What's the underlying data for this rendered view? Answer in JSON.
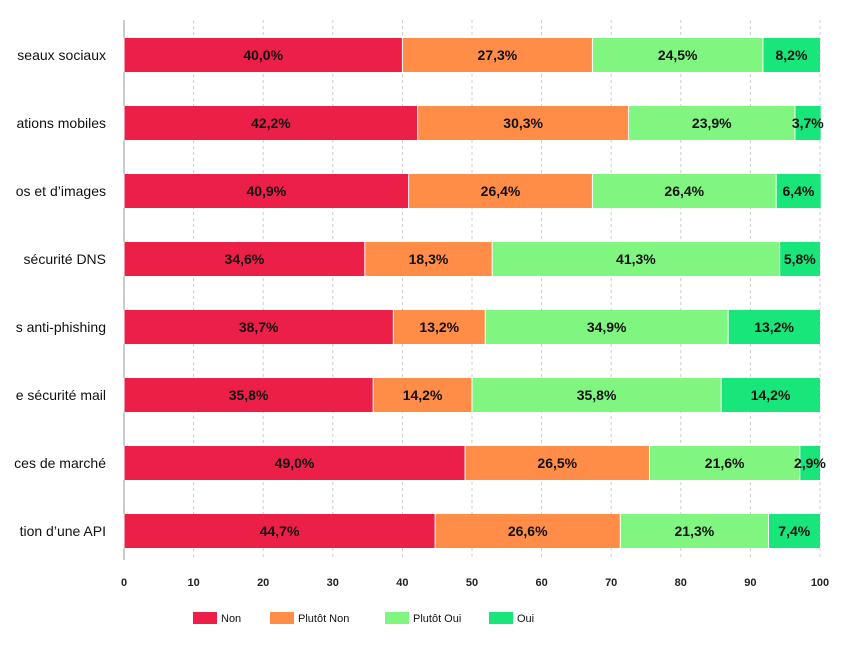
{
  "chart_data": {
    "type": "bar",
    "orientation": "horizontal",
    "stacked": true,
    "title": "",
    "xlabel": "",
    "ylabel": "",
    "xlim": [
      0,
      100
    ],
    "ticks": [
      "0",
      "10",
      "20",
      "30",
      "40",
      "50",
      "60",
      "70",
      "80",
      "90",
      "100"
    ],
    "grid": true,
    "legend_position": "bottom",
    "categories": [
      "seaux sociaux",
      "ations mobiles",
      "os et d’images",
      "sécurité DNS",
      "s anti-phishing",
      "e sécurité mail",
      "ces de marché",
      "tion d’une API"
    ],
    "series": [
      {
        "name": "Non",
        "color": "#EB1F48",
        "values": [
          40.0,
          42.2,
          40.9,
          34.6,
          38.7,
          35.8,
          49.0,
          44.7
        ],
        "labels": [
          "40,0%",
          "42,2%",
          "40,9%",
          "34,6%",
          "38,7%",
          "35,8%",
          "49,0%",
          "44,7%"
        ]
      },
      {
        "name": "Plutôt Non",
        "color": "#FF8C47",
        "values": [
          27.3,
          30.3,
          26.4,
          18.3,
          13.2,
          14.2,
          26.5,
          26.6
        ],
        "labels": [
          "27,3%",
          "30,3%",
          "26,4%",
          "18,3%",
          "13,2%",
          "14,2%",
          "26,5%",
          "26,6%"
        ]
      },
      {
        "name": "Plutôt Oui",
        "color": "#80F580",
        "values": [
          24.5,
          23.9,
          26.4,
          41.3,
          34.9,
          35.8,
          21.6,
          21.3
        ],
        "labels": [
          "24,5%",
          "23,9%",
          "26,4%",
          "41,3%",
          "34,9%",
          "35,8%",
          "21,6%",
          "21,3%"
        ]
      },
      {
        "name": "Oui",
        "color": "#19E67A",
        "values": [
          8.2,
          3.7,
          6.4,
          5.8,
          13.2,
          14.2,
          2.9,
          7.4
        ],
        "labels": [
          "8,2%",
          "3,7%",
          "6,4%",
          "5,8%",
          "13,2%",
          "14,2%",
          "2,9%",
          "7,4%"
        ]
      }
    ]
  }
}
